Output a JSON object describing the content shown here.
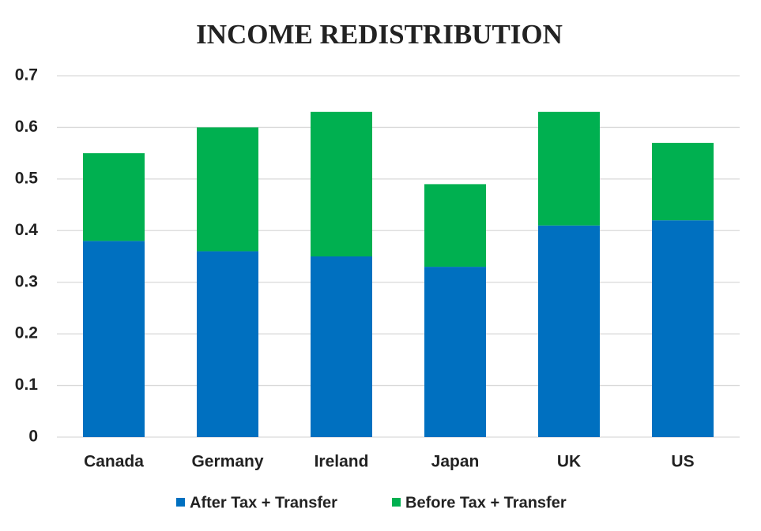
{
  "chart_data": {
    "type": "stacked_bar",
    "title": "INCOME REDISTRIBUTION",
    "categories": [
      "Canada",
      "Germany",
      "Ireland",
      "Japan",
      "UK",
      "US"
    ],
    "series": [
      {
        "name": "After Tax + Transfer",
        "color": "#0070c0",
        "values": [
          0.38,
          0.36,
          0.35,
          0.33,
          0.41,
          0.42
        ]
      },
      {
        "name": "Before Tax + Transfer",
        "color": "#00b050",
        "values": [
          0.17,
          0.24,
          0.28,
          0.16,
          0.22,
          0.15
        ]
      }
    ],
    "ylim": [
      0,
      0.7
    ],
    "yticks": [
      0,
      0.1,
      0.2,
      0.3,
      0.4,
      0.5,
      0.6,
      0.7
    ],
    "grid": true,
    "legend": "bottom"
  }
}
